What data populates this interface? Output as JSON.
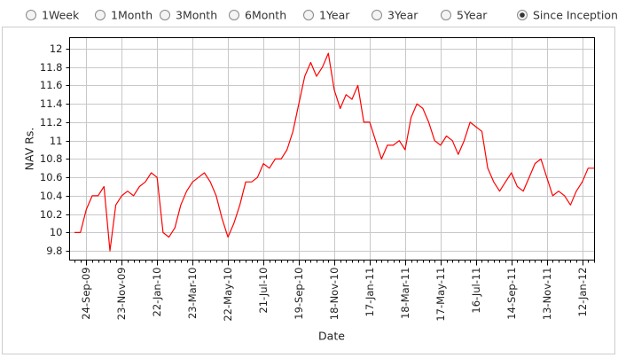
{
  "controls": {
    "options": [
      "1Week",
      "1Month",
      "3Month",
      "6Month",
      "1Year",
      "3Year",
      "5Year",
      "Since Inception"
    ],
    "selected": "Since Inception"
  },
  "chart_data": {
    "type": "line",
    "x_label": "Date",
    "y_label": "NAV  Rs.",
    "color": "#ff0000",
    "grid": true,
    "ylim": [
      9.7,
      12.12
    ],
    "yticks": [
      9.8,
      10,
      10.2,
      10.4,
      10.6,
      10.8,
      11,
      11.2,
      11.4,
      11.6,
      11.8,
      12
    ],
    "categories": [
      null,
      null,
      "24-Sep-09",
      null,
      null,
      null,
      null,
      null,
      "23-Nov-09",
      null,
      null,
      null,
      null,
      null,
      "22-Jan-10",
      null,
      null,
      null,
      null,
      null,
      "23-Mar-10",
      null,
      null,
      null,
      null,
      null,
      "22-May-10",
      null,
      null,
      null,
      null,
      null,
      "21-Jul-10",
      null,
      null,
      null,
      null,
      null,
      "19-Sep-10",
      null,
      null,
      null,
      null,
      null,
      "18-Nov-10",
      null,
      null,
      null,
      null,
      null,
      "17-Jan-11",
      null,
      null,
      null,
      null,
      null,
      "18-Mar-11",
      null,
      null,
      null,
      null,
      null,
      "17-May-11",
      null,
      null,
      null,
      null,
      null,
      "16-Jul-11",
      null,
      null,
      null,
      null,
      null,
      "14-Sep-11",
      null,
      null,
      null,
      null,
      null,
      "13-Nov-11",
      null,
      null,
      null,
      null,
      null,
      "12-Jan-12",
      null,
      null
    ],
    "values": [
      10.0,
      10.0,
      10.25,
      10.4,
      10.4,
      10.5,
      9.8,
      10.3,
      10.4,
      10.45,
      10.4,
      10.5,
      10.55,
      10.65,
      10.6,
      10.0,
      9.95,
      10.05,
      10.3,
      10.45,
      10.55,
      10.6,
      10.65,
      10.55,
      10.4,
      10.15,
      9.95,
      10.1,
      10.3,
      10.55,
      10.55,
      10.6,
      10.75,
      10.7,
      10.8,
      10.8,
      10.9,
      11.1,
      11.4,
      11.7,
      11.85,
      11.7,
      11.8,
      11.95,
      11.55,
      11.35,
      11.5,
      11.45,
      11.6,
      11.2,
      11.2,
      11.0,
      10.8,
      10.95,
      10.95,
      11.0,
      10.9,
      11.25,
      11.4,
      11.35,
      11.2,
      11.0,
      10.95,
      11.05,
      11.0,
      10.85,
      11.0,
      11.2,
      11.15,
      11.1,
      10.7,
      10.55,
      10.45,
      10.55,
      10.65,
      10.5,
      10.45,
      10.6,
      10.75,
      10.8,
      10.6,
      10.4,
      10.45,
      10.4,
      10.3,
      10.45,
      10.55,
      10.7,
      10.7
    ]
  }
}
